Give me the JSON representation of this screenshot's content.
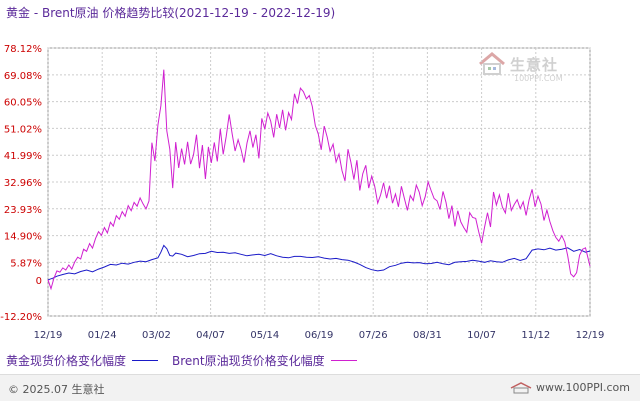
{
  "header": {
    "title": "黄金 - Brent原油 价格趋势比较(2021-12-19 - 2022-12-19)"
  },
  "watermark": {
    "name": "生意社",
    "site": "100PPI.COM"
  },
  "footer": {
    "copyright": "© 2025.07 生意社",
    "site": "www.100PPI.com"
  },
  "chart_data": {
    "type": "line",
    "yticks": [
      "78.12%",
      "69.08%",
      "60.05%",
      "51.02%",
      "41.99%",
      "32.96%",
      "23.93%",
      "14.90%",
      "5.87%",
      "0",
      "-12.20%"
    ],
    "ytick_values": [
      78.12,
      69.08,
      60.05,
      51.02,
      41.99,
      32.96,
      23.93,
      14.9,
      5.87,
      0,
      -12.2
    ],
    "xticks": [
      "12/19",
      "01/24",
      "03/02",
      "04/07",
      "05/14",
      "06/19",
      "07/26",
      "08/31",
      "10/07",
      "11/12",
      "12/19"
    ],
    "ylim": [
      -12.2,
      78.12
    ],
    "grid": true,
    "legend_position": "bottom",
    "colors": {
      "gold": "#1a1ac8",
      "brent": "#d020d0",
      "grid": "#cccccc",
      "axis": "#999999",
      "tick_text": "#cc0000",
      "xtick_text": "#333366"
    },
    "series": [
      {
        "name": "黄金现货价格变化幅度",
        "points": [
          [
            0,
            0
          ],
          [
            3,
            0.5
          ],
          [
            6,
            1.2
          ],
          [
            10,
            1.8
          ],
          [
            14,
            2.3
          ],
          [
            18,
            2.0
          ],
          [
            22,
            2.8
          ],
          [
            26,
            3.3
          ],
          [
            30,
            2.7
          ],
          [
            34,
            3.6
          ],
          [
            38,
            4.3
          ],
          [
            42,
            5.2
          ],
          [
            46,
            5.0
          ],
          [
            50,
            5.6
          ],
          [
            54,
            5.3
          ],
          [
            58,
            5.9
          ],
          [
            62,
            6.3
          ],
          [
            66,
            6.1
          ],
          [
            70,
            6.8
          ],
          [
            74,
            7.4
          ],
          [
            76,
            9.3
          ],
          [
            78,
            11.6
          ],
          [
            80,
            10.5
          ],
          [
            82,
            8.2
          ],
          [
            84,
            8.0
          ],
          [
            86,
            9.0
          ],
          [
            90,
            8.6
          ],
          [
            94,
            7.8
          ],
          [
            98,
            8.2
          ],
          [
            102,
            8.8
          ],
          [
            106,
            8.9
          ],
          [
            110,
            9.6
          ],
          [
            114,
            9.2
          ],
          [
            118,
            9.3
          ],
          [
            122,
            8.9
          ],
          [
            126,
            9.1
          ],
          [
            130,
            8.6
          ],
          [
            134,
            8.1
          ],
          [
            138,
            8.4
          ],
          [
            142,
            8.6
          ],
          [
            146,
            8.2
          ],
          [
            150,
            8.8
          ],
          [
            154,
            8.1
          ],
          [
            158,
            7.6
          ],
          [
            162,
            7.4
          ],
          [
            166,
            7.9
          ],
          [
            170,
            7.9
          ],
          [
            174,
            7.6
          ],
          [
            178,
            7.5
          ],
          [
            182,
            7.8
          ],
          [
            186,
            7.3
          ],
          [
            190,
            7.0
          ],
          [
            194,
            7.2
          ],
          [
            198,
            6.8
          ],
          [
            202,
            6.6
          ],
          [
            206,
            6.0
          ],
          [
            210,
            5.2
          ],
          [
            214,
            4.1
          ],
          [
            218,
            3.4
          ],
          [
            222,
            3.0
          ],
          [
            226,
            3.3
          ],
          [
            230,
            4.4
          ],
          [
            234,
            4.9
          ],
          [
            238,
            5.6
          ],
          [
            242,
            5.9
          ],
          [
            246,
            5.7
          ],
          [
            250,
            5.8
          ],
          [
            254,
            5.4
          ],
          [
            258,
            5.5
          ],
          [
            262,
            5.9
          ],
          [
            266,
            5.4
          ],
          [
            270,
            5.1
          ],
          [
            274,
            5.9
          ],
          [
            278,
            6.1
          ],
          [
            282,
            6.2
          ],
          [
            286,
            6.6
          ],
          [
            290,
            6.3
          ],
          [
            294,
            5.9
          ],
          [
            298,
            6.4
          ],
          [
            302,
            6.1
          ],
          [
            306,
            5.9
          ],
          [
            310,
            6.7
          ],
          [
            314,
            7.2
          ],
          [
            318,
            6.5
          ],
          [
            322,
            7.1
          ],
          [
            326,
            10.0
          ],
          [
            330,
            10.4
          ],
          [
            334,
            10.1
          ],
          [
            338,
            10.7
          ],
          [
            342,
            10.0
          ],
          [
            346,
            10.3
          ],
          [
            350,
            10.8
          ],
          [
            354,
            9.6
          ],
          [
            358,
            10.2
          ],
          [
            362,
            9.3
          ],
          [
            365,
            9.7
          ]
        ]
      },
      {
        "name": "Brent原油现货价格变化幅度",
        "points": [
          [
            0,
            0
          ],
          [
            2,
            -3.0
          ],
          [
            4,
            0.5
          ],
          [
            6,
            3.0
          ],
          [
            8,
            2.6
          ],
          [
            10,
            4.0
          ],
          [
            12,
            3.3
          ],
          [
            14,
            5.0
          ],
          [
            16,
            3.6
          ],
          [
            18,
            6.0
          ],
          [
            20,
            7.6
          ],
          [
            22,
            7.0
          ],
          [
            24,
            10.3
          ],
          [
            26,
            9.6
          ],
          [
            28,
            12.2
          ],
          [
            30,
            10.7
          ],
          [
            32,
            13.9
          ],
          [
            34,
            16.2
          ],
          [
            36,
            15.0
          ],
          [
            38,
            17.6
          ],
          [
            40,
            15.8
          ],
          [
            42,
            19.4
          ],
          [
            44,
            18.1
          ],
          [
            46,
            21.6
          ],
          [
            48,
            20.4
          ],
          [
            50,
            23.0
          ],
          [
            52,
            21.4
          ],
          [
            54,
            25.0
          ],
          [
            56,
            23.3
          ],
          [
            58,
            26.1
          ],
          [
            60,
            24.8
          ],
          [
            62,
            27.6
          ],
          [
            64,
            25.6
          ],
          [
            66,
            23.9
          ],
          [
            68,
            26.6
          ],
          [
            70,
            46.2
          ],
          [
            72,
            40.0
          ],
          [
            74,
            52.1
          ],
          [
            76,
            58.7
          ],
          [
            78,
            70.8
          ],
          [
            80,
            50.2
          ],
          [
            82,
            44.0
          ],
          [
            84,
            30.9
          ],
          [
            86,
            46.4
          ],
          [
            88,
            37.7
          ],
          [
            90,
            44.2
          ],
          [
            92,
            38.9
          ],
          [
            94,
            46.5
          ],
          [
            96,
            39.0
          ],
          [
            98,
            42.1
          ],
          [
            100,
            48.9
          ],
          [
            102,
            37.6
          ],
          [
            104,
            45.4
          ],
          [
            106,
            34.0
          ],
          [
            108,
            44.8
          ],
          [
            110,
            39.4
          ],
          [
            112,
            46.3
          ],
          [
            114,
            39.9
          ],
          [
            116,
            50.9
          ],
          [
            118,
            42.3
          ],
          [
            120,
            48.3
          ],
          [
            122,
            55.7
          ],
          [
            124,
            49.3
          ],
          [
            126,
            43.4
          ],
          [
            128,
            47.2
          ],
          [
            130,
            44.0
          ],
          [
            132,
            39.5
          ],
          [
            134,
            46.1
          ],
          [
            136,
            50.2
          ],
          [
            138,
            44.6
          ],
          [
            140,
            48.9
          ],
          [
            142,
            40.9
          ],
          [
            144,
            54.4
          ],
          [
            146,
            50.8
          ],
          [
            148,
            56.2
          ],
          [
            150,
            53.5
          ],
          [
            152,
            48.0
          ],
          [
            154,
            55.8
          ],
          [
            156,
            51.2
          ],
          [
            158,
            57.3
          ],
          [
            160,
            50.4
          ],
          [
            162,
            56.3
          ],
          [
            164,
            54.0
          ],
          [
            166,
            62.7
          ],
          [
            168,
            59.4
          ],
          [
            170,
            64.6
          ],
          [
            172,
            63.4
          ],
          [
            174,
            61.0
          ],
          [
            176,
            62.1
          ],
          [
            178,
            58.4
          ],
          [
            180,
            52.0
          ],
          [
            182,
            49.1
          ],
          [
            184,
            43.8
          ],
          [
            186,
            51.8
          ],
          [
            188,
            48.1
          ],
          [
            190,
            43.3
          ],
          [
            192,
            45.7
          ],
          [
            194,
            39.7
          ],
          [
            196,
            42.4
          ],
          [
            198,
            36.8
          ],
          [
            200,
            33.3
          ],
          [
            202,
            44.0
          ],
          [
            204,
            39.6
          ],
          [
            206,
            33.8
          ],
          [
            208,
            40.3
          ],
          [
            210,
            30.1
          ],
          [
            212,
            35.8
          ],
          [
            214,
            38.6
          ],
          [
            216,
            30.9
          ],
          [
            218,
            34.9
          ],
          [
            220,
            31.5
          ],
          [
            222,
            25.8
          ],
          [
            224,
            28.6
          ],
          [
            226,
            32.7
          ],
          [
            228,
            27.5
          ],
          [
            230,
            31.7
          ],
          [
            232,
            25.8
          ],
          [
            234,
            28.9
          ],
          [
            236,
            24.6
          ],
          [
            238,
            31.5
          ],
          [
            240,
            27.4
          ],
          [
            242,
            23.4
          ],
          [
            244,
            28.4
          ],
          [
            246,
            26.7
          ],
          [
            248,
            31.9
          ],
          [
            250,
            29.6
          ],
          [
            252,
            25.0
          ],
          [
            254,
            28.0
          ],
          [
            256,
            33.0
          ],
          [
            258,
            30.1
          ],
          [
            260,
            27.4
          ],
          [
            262,
            26.6
          ],
          [
            264,
            23.7
          ],
          [
            266,
            29.8
          ],
          [
            268,
            26.1
          ],
          [
            270,
            20.6
          ],
          [
            272,
            25.0
          ],
          [
            274,
            18.0
          ],
          [
            276,
            23.3
          ],
          [
            278,
            19.5
          ],
          [
            280,
            17.6
          ],
          [
            282,
            16.0
          ],
          [
            284,
            22.6
          ],
          [
            286,
            21.0
          ],
          [
            288,
            20.7
          ],
          [
            290,
            16.3
          ],
          [
            292,
            12.3
          ],
          [
            294,
            17.8
          ],
          [
            296,
            22.6
          ],
          [
            298,
            17.8
          ],
          [
            300,
            29.6
          ],
          [
            302,
            25.2
          ],
          [
            304,
            28.6
          ],
          [
            306,
            24.5
          ],
          [
            308,
            22.5
          ],
          [
            310,
            29.2
          ],
          [
            312,
            23.4
          ],
          [
            314,
            25.4
          ],
          [
            316,
            27.0
          ],
          [
            318,
            24.0
          ],
          [
            320,
            26.3
          ],
          [
            322,
            21.7
          ],
          [
            324,
            27.0
          ],
          [
            326,
            30.5
          ],
          [
            328,
            24.6
          ],
          [
            330,
            28.2
          ],
          [
            332,
            25.5
          ],
          [
            334,
            20.0
          ],
          [
            336,
            23.5
          ],
          [
            338,
            19.6
          ],
          [
            340,
            16.5
          ],
          [
            342,
            14.3
          ],
          [
            344,
            13.0
          ],
          [
            346,
            14.9
          ],
          [
            348,
            12.7
          ],
          [
            350,
            8.1
          ],
          [
            352,
            2.0
          ],
          [
            354,
            1.0
          ],
          [
            356,
            2.4
          ],
          [
            358,
            8.3
          ],
          [
            360,
            10.3
          ],
          [
            362,
            10.8
          ],
          [
            365,
            4.6
          ]
        ]
      }
    ]
  }
}
